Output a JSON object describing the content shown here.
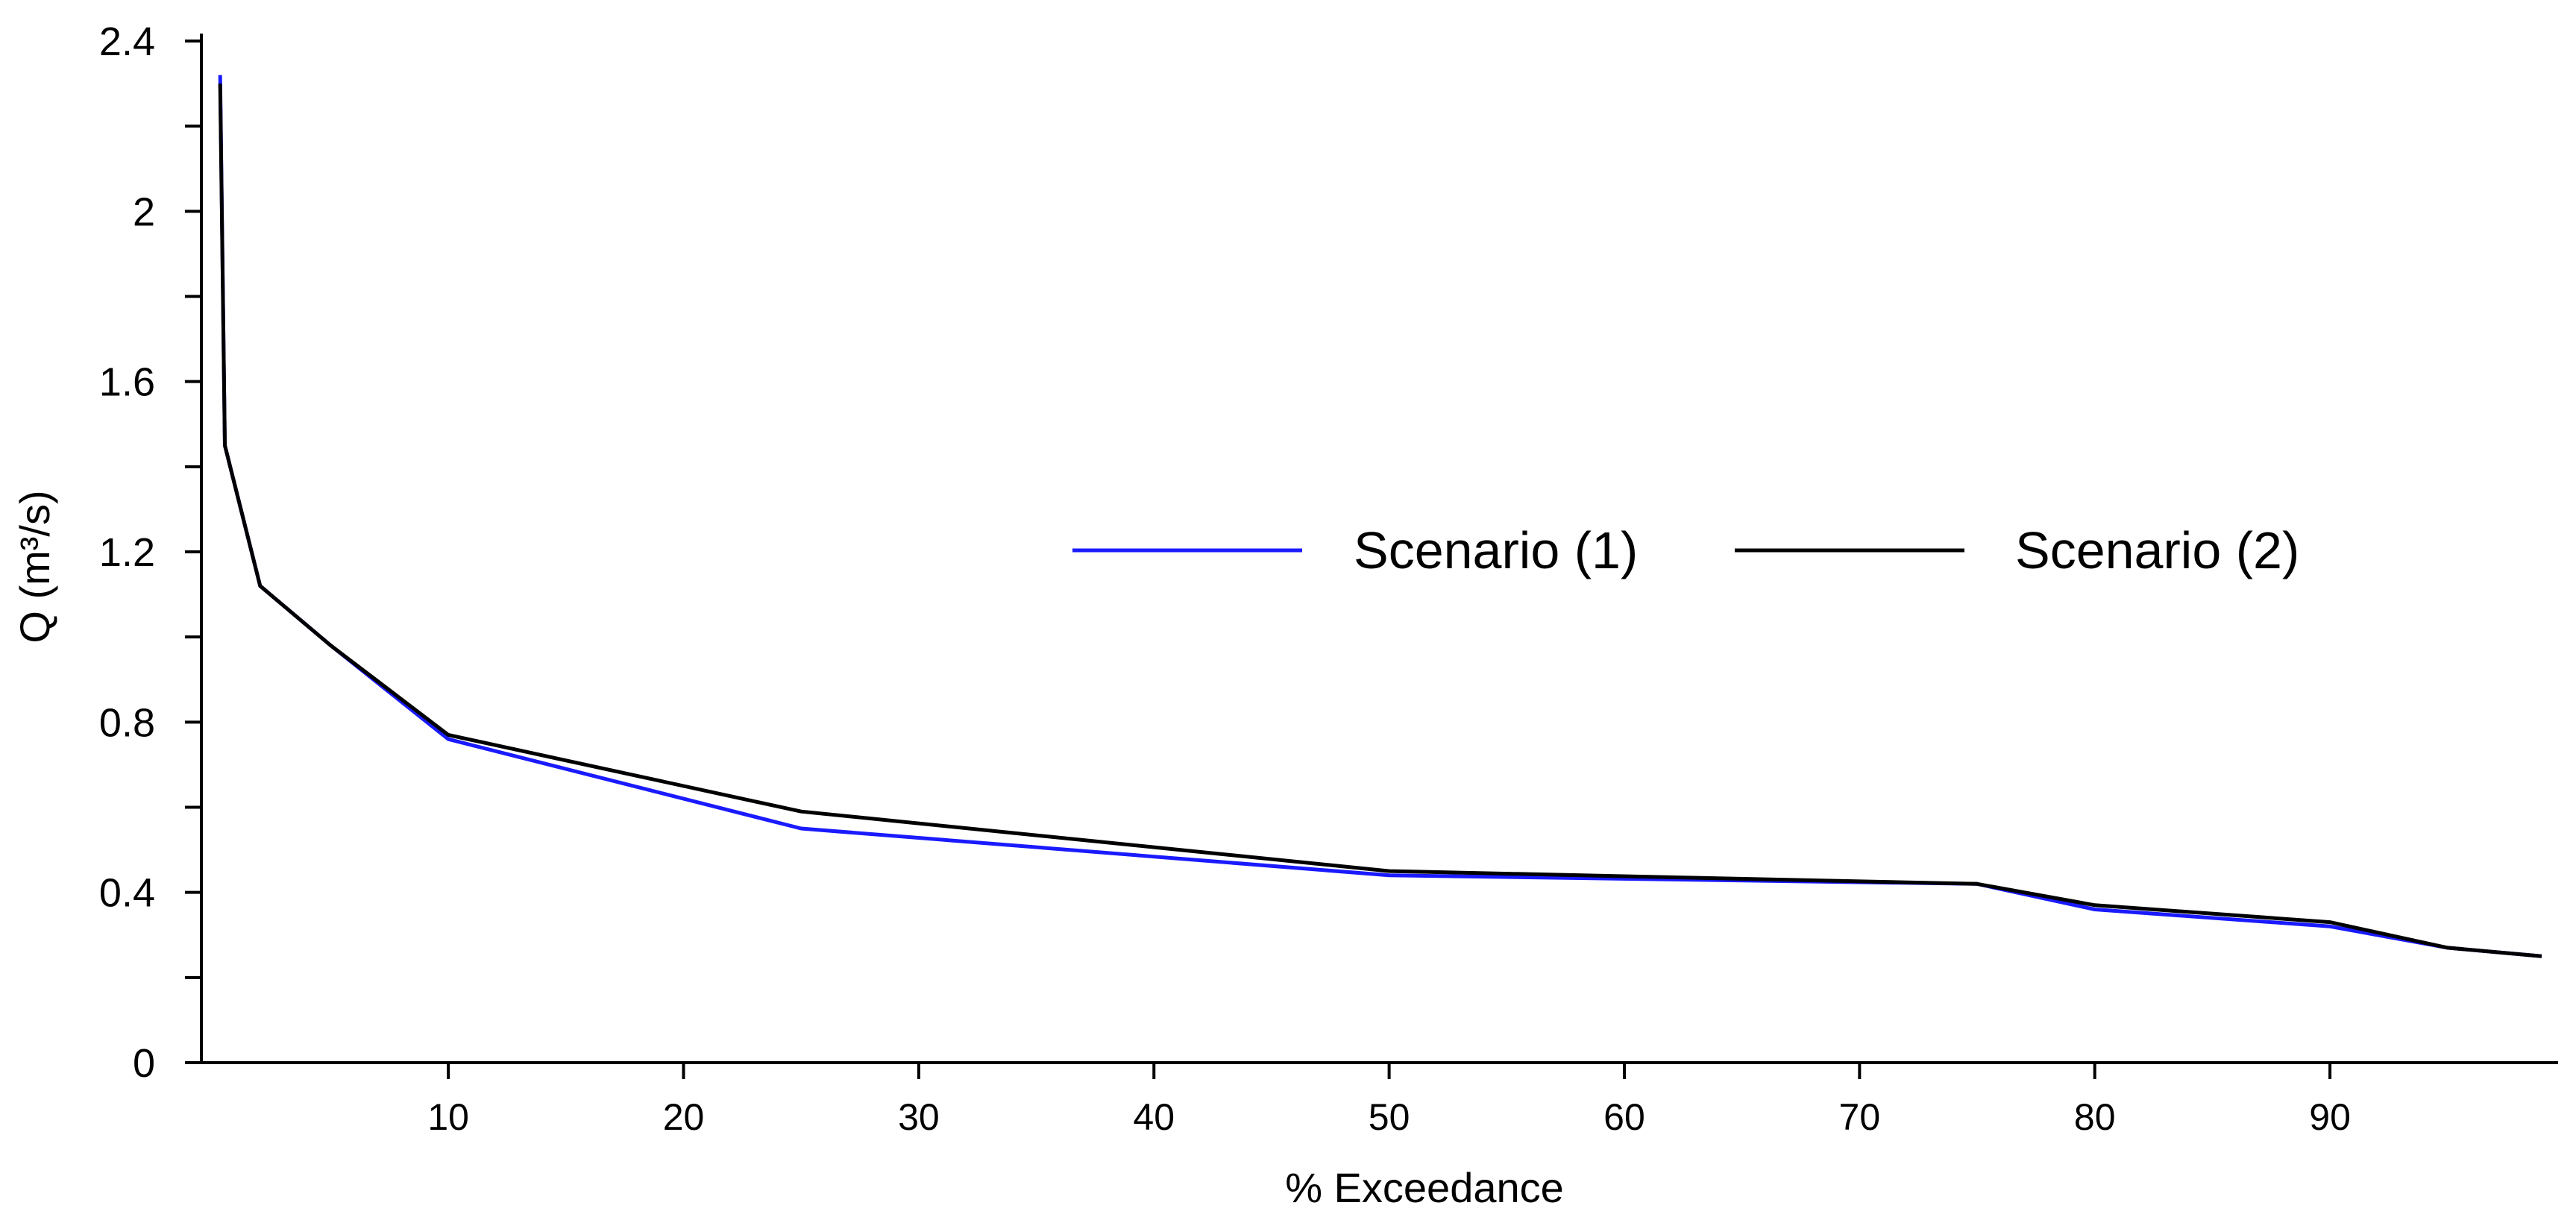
{
  "chart_data": {
    "type": "line",
    "title": "",
    "xlabel": "% Exceedance",
    "ylabel": "Q (m³/s)",
    "xlim": [
      -0.5,
      99.7
    ],
    "ylim": [
      0,
      2.4
    ],
    "xticks": [
      10,
      20,
      30,
      40,
      50,
      60,
      70,
      80,
      90
    ],
    "yticks": [
      0,
      0.4,
      0.8,
      1.2,
      1.6,
      2,
      2.4
    ],
    "ytick_labels": [
      "0",
      "0.4",
      "0.8",
      "1.2",
      "1.6",
      "2",
      "2.4"
    ],
    "grid": false,
    "legend_position": "center-right",
    "series": [
      {
        "name": "Scenario (1)",
        "color": "#1a1aff",
        "x": [
          0.3,
          0.5,
          2,
          5,
          10,
          25,
          50,
          75,
          80,
          90,
          95,
          99
        ],
        "y": [
          2.32,
          1.45,
          1.12,
          0.98,
          0.76,
          0.55,
          0.44,
          0.42,
          0.36,
          0.32,
          0.27,
          0.25
        ]
      },
      {
        "name": "Scenario (2)",
        "color": "#000000",
        "x": [
          0.3,
          0.5,
          2,
          5,
          10,
          25,
          50,
          75,
          80,
          90,
          95,
          99
        ],
        "y": [
          2.3,
          1.45,
          1.12,
          0.98,
          0.77,
          0.59,
          0.45,
          0.42,
          0.37,
          0.33,
          0.27,
          0.25
        ]
      }
    ]
  }
}
